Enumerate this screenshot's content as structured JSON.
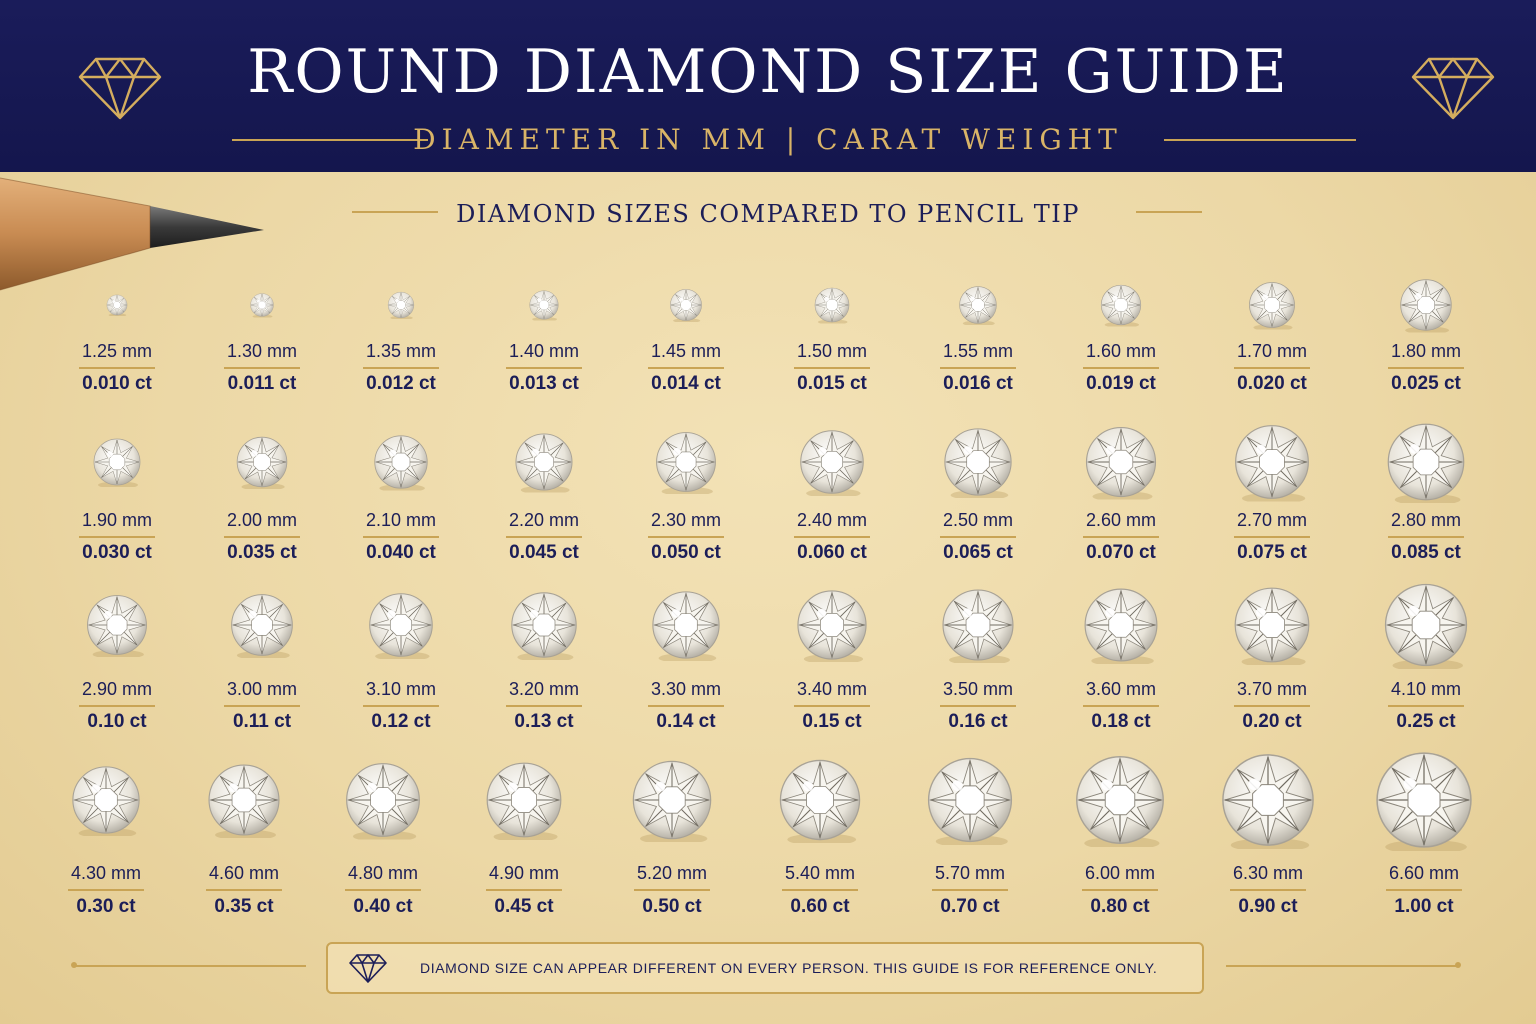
{
  "header": {
    "title": "ROUND DIAMOND SIZE GUIDE",
    "subtitle": "DIAMETER IN MM | CARAT WEIGHT",
    "icon": "diamond-outline-icon",
    "accent_color": "#c9a455",
    "background_color": "#16184f"
  },
  "section_title": "DIAMOND SIZES COMPARED TO PENCIL TIP",
  "pencil_icon": "pencil-icon",
  "rows": [
    {
      "items": [
        {
          "mm": "1.25 mm",
          "ct": "0.010 ct",
          "d": 1.25
        },
        {
          "mm": "1.30 mm",
          "ct": "0.011 ct",
          "d": 1.3
        },
        {
          "mm": "1.35 mm",
          "ct": "0.012 ct",
          "d": 1.35
        },
        {
          "mm": "1.40 mm",
          "ct": "0.013 ct",
          "d": 1.4
        },
        {
          "mm": "1.45 mm",
          "ct": "0.014 ct",
          "d": 1.45
        },
        {
          "mm": "1.50 mm",
          "ct": "0.015 ct",
          "d": 1.5
        },
        {
          "mm": "1.55 mm",
          "ct": "0.016 ct",
          "d": 1.55
        },
        {
          "mm": "1.60 mm",
          "ct": "0.019 ct",
          "d": 1.6
        },
        {
          "mm": "1.70 mm",
          "ct": "0.020 ct",
          "d": 1.7
        },
        {
          "mm": "1.80 mm",
          "ct": "0.025 ct",
          "d": 1.8
        }
      ]
    },
    {
      "items": [
        {
          "mm": "1.90 mm",
          "ct": "0.030 ct",
          "d": 1.9
        },
        {
          "mm": "2.00 mm",
          "ct": "0.035 ct",
          "d": 2.0
        },
        {
          "mm": "2.10 mm",
          "ct": "0.040 ct",
          "d": 2.1
        },
        {
          "mm": "2.20 mm",
          "ct": "0.045 ct",
          "d": 2.2
        },
        {
          "mm": "2.30 mm",
          "ct": "0.050 ct",
          "d": 2.3
        },
        {
          "mm": "2.40 mm",
          "ct": "0.060 ct",
          "d": 2.4
        },
        {
          "mm": "2.50 mm",
          "ct": "0.065 ct",
          "d": 2.5
        },
        {
          "mm": "2.60 mm",
          "ct": "0.070 ct",
          "d": 2.6
        },
        {
          "mm": "2.70 mm",
          "ct": "0.075 ct",
          "d": 2.7
        },
        {
          "mm": "2.80 mm",
          "ct": "0.085 ct",
          "d": 2.8
        }
      ]
    },
    {
      "items": [
        {
          "mm": "2.90 mm",
          "ct": "0.10 ct",
          "d": 2.9
        },
        {
          "mm": "3.00 mm",
          "ct": "0.11 ct",
          "d": 3.0
        },
        {
          "mm": "3.10 mm",
          "ct": "0.12 ct",
          "d": 3.1
        },
        {
          "mm": "3.20 mm",
          "ct": "0.13 ct",
          "d": 3.2
        },
        {
          "mm": "3.30 mm",
          "ct": "0.14 ct",
          "d": 3.3
        },
        {
          "mm": "3.40 mm",
          "ct": "0.15 ct",
          "d": 3.4
        },
        {
          "mm": "3.50 mm",
          "ct": "0.16 ct",
          "d": 3.5
        },
        {
          "mm": "3.60 mm",
          "ct": "0.18 ct",
          "d": 3.6
        },
        {
          "mm": "3.70 mm",
          "ct": "0.20 ct",
          "d": 3.7
        },
        {
          "mm": "4.10 mm",
          "ct": "0.25 ct",
          "d": 4.1
        }
      ]
    },
    {
      "items": [
        {
          "mm": "4.30 mm",
          "ct": "0.30 ct",
          "d": 4.3
        },
        {
          "mm": "4.60 mm",
          "ct": "0.35 ct",
          "d": 4.6
        },
        {
          "mm": "4.80 mm",
          "ct": "0.40 ct",
          "d": 4.8
        },
        {
          "mm": "4.90 mm",
          "ct": "0.45 ct",
          "d": 4.9
        },
        {
          "mm": "5.20 mm",
          "ct": "0.50 ct",
          "d": 5.2
        },
        {
          "mm": "5.40 mm",
          "ct": "0.60 ct",
          "d": 5.4
        },
        {
          "mm": "5.70 mm",
          "ct": "0.70 ct",
          "d": 5.7
        },
        {
          "mm": "6.00 mm",
          "ct": "0.80 ct",
          "d": 6.0
        },
        {
          "mm": "6.30 mm",
          "ct": "0.90 ct",
          "d": 6.3
        },
        {
          "mm": "6.60 mm",
          "ct": "1.00 ct",
          "d": 6.6
        }
      ]
    }
  ],
  "footer": {
    "icon": "diamond-outline-icon",
    "text": "DIAMOND SIZE CAN APPEAR DIFFERENT ON EVERY PERSON. THIS GUIDE IS FOR REFERENCE ONLY."
  }
}
